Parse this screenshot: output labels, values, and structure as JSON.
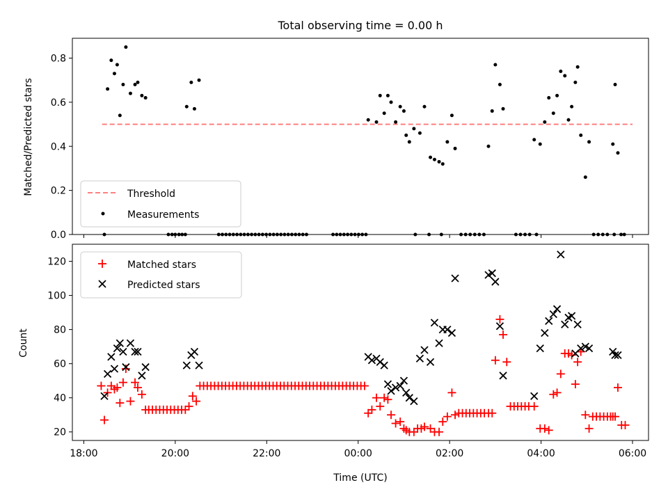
{
  "chart_data": [
    {
      "type": "scatter",
      "title": "Total observing time = 0.00 h",
      "xlabel": "",
      "ylabel": "Matched/Predicted stars",
      "xlim": [
        "18:00",
        "06:00"
      ],
      "ylim": [
        0,
        0.89
      ],
      "yticks": [
        "0.0",
        "0.2",
        "0.4",
        "0.6",
        "0.8"
      ],
      "legend_position": "lower-left",
      "threshold": {
        "name": "Threshold",
        "value": 0.5,
        "x_range": [
          18.4,
          30.0
        ],
        "color": "#ff7f7f"
      },
      "series": [
        {
          "name": "Measurements",
          "color": "#000000",
          "x": [
            18.45,
            18.52,
            18.6,
            18.67,
            18.73,
            18.79,
            18.86,
            18.92,
            19.02,
            19.12,
            19.18,
            19.27,
            19.35,
            20.25,
            20.35,
            20.42,
            20.52,
            24.22,
            24.4,
            24.48,
            24.57,
            24.65,
            24.72,
            24.82,
            24.92,
            25.0,
            25.05,
            25.12,
            25.22,
            25.35,
            25.45,
            25.58,
            25.67,
            25.77,
            25.85,
            25.95,
            26.05,
            26.12,
            26.85,
            26.93,
            27.0,
            27.1,
            27.17,
            27.85,
            27.98,
            28.08,
            28.17,
            28.27,
            28.35,
            28.43,
            28.52,
            28.6,
            28.67,
            28.75,
            28.8,
            28.87,
            28.97,
            29.05,
            29.57,
            29.62,
            29.68
          ],
          "y": [
            0.0,
            0.66,
            0.79,
            0.73,
            0.77,
            0.54,
            0.68,
            0.85,
            0.64,
            0.68,
            0.69,
            0.63,
            0.62,
            0.58,
            0.69,
            0.57,
            0.7,
            0.52,
            0.51,
            0.63,
            0.55,
            0.63,
            0.6,
            0.51,
            0.58,
            0.56,
            0.45,
            0.42,
            0.48,
            0.46,
            0.58,
            0.35,
            0.34,
            0.33,
            0.32,
            0.42,
            0.54,
            0.39,
            0.4,
            0.56,
            0.77,
            0.68,
            0.57,
            0.43,
            0.41,
            0.51,
            0.62,
            0.55,
            0.63,
            0.74,
            0.72,
            0.52,
            0.58,
            0.69,
            0.76,
            0.45,
            0.26,
            0.42,
            0.41,
            0.68,
            0.37
          ]
        },
        {
          "name": "",
          "color": "#000000",
          "x": [
            19.85,
            19.93,
            20.0,
            20.08,
            20.15,
            20.22,
            20.95,
            21.03,
            21.11,
            21.19,
            21.27,
            21.35,
            21.43,
            21.51,
            21.59,
            21.67,
            21.75,
            21.83,
            21.91,
            21.99,
            22.07,
            22.15,
            22.23,
            22.31,
            22.39,
            22.47,
            22.55,
            22.63,
            22.71,
            22.79,
            22.87,
            23.45,
            23.53,
            23.61,
            23.69,
            23.77,
            23.85,
            23.93,
            24.01,
            24.09,
            24.17,
            25.25,
            25.55,
            25.82,
            26.25,
            26.35,
            26.45,
            26.55,
            26.65,
            26.75,
            27.45,
            27.55,
            27.65,
            27.75,
            27.9,
            29.15,
            29.25,
            29.35,
            29.45,
            29.6,
            29.75,
            29.82
          ],
          "y": [
            0,
            0,
            0,
            0,
            0,
            0,
            0,
            0,
            0,
            0,
            0,
            0,
            0,
            0,
            0,
            0,
            0,
            0,
            0,
            0,
            0,
            0,
            0,
            0,
            0,
            0,
            0,
            0,
            0,
            0,
            0,
            0,
            0,
            0,
            0,
            0,
            0,
            0,
            0,
            0,
            0,
            0,
            0,
            0,
            0,
            0,
            0,
            0,
            0,
            0,
            0,
            0,
            0,
            0,
            0,
            0,
            0,
            0,
            0,
            0,
            0,
            0
          ]
        }
      ]
    },
    {
      "type": "scatter",
      "xlabel": "Time (UTC)",
      "ylabel": "Count",
      "xlim": [
        "18:00",
        "06:00"
      ],
      "ylim": [
        15,
        130
      ],
      "xticks": [
        "18:00",
        "20:00",
        "22:00",
        "00:00",
        "02:00",
        "04:00",
        "06:00"
      ],
      "yticks": [
        "20",
        "40",
        "60",
        "80",
        "100",
        "120"
      ],
      "legend_position": "upper-left",
      "series": [
        {
          "name": "Matched stars",
          "marker": "plus",
          "color": "#ff0000",
          "x": [
            18.38,
            18.45,
            18.52,
            18.6,
            18.67,
            18.73,
            18.79,
            18.86,
            18.92,
            19.02,
            19.12,
            19.18,
            19.27,
            19.35,
            19.42,
            19.5,
            19.58,
            19.66,
            19.74,
            19.82,
            19.9,
            19.98,
            20.06,
            20.14,
            20.22,
            20.3,
            20.38,
            20.46,
            20.54,
            20.62,
            20.7,
            20.78,
            20.86,
            20.94,
            21.02,
            21.1,
            21.18,
            21.26,
            21.34,
            21.42,
            21.5,
            21.58,
            21.66,
            21.74,
            21.82,
            21.9,
            21.98,
            22.06,
            22.14,
            22.22,
            22.3,
            22.38,
            22.46,
            22.54,
            22.62,
            22.7,
            22.78,
            22.86,
            22.94,
            23.02,
            23.1,
            23.18,
            23.26,
            23.34,
            23.42,
            23.5,
            23.58,
            23.66,
            23.74,
            23.82,
            23.9,
            23.98,
            24.06,
            24.14,
            24.22,
            24.3,
            24.4,
            24.48,
            24.57,
            24.65,
            24.72,
            24.82,
            24.92,
            25.0,
            25.05,
            25.12,
            25.22,
            25.3,
            25.38,
            25.45,
            25.58,
            25.67,
            25.77,
            25.85,
            25.95,
            26.05,
            26.12,
            26.2,
            26.28,
            26.36,
            26.44,
            26.52,
            26.6,
            26.68,
            26.76,
            26.85,
            26.93,
            27.0,
            27.1,
            27.17,
            27.25,
            27.33,
            27.41,
            27.49,
            27.57,
            27.65,
            27.73,
            27.85,
            27.98,
            28.08,
            28.17,
            28.27,
            28.35,
            28.43,
            28.52,
            28.6,
            28.67,
            28.75,
            28.8,
            28.87,
            28.97,
            29.05,
            29.13,
            29.21,
            29.29,
            29.37,
            29.45,
            29.52,
            29.57,
            29.62,
            29.68,
            29.76,
            29.84
          ],
          "y": [
            47,
            27,
            43,
            47,
            45,
            46,
            37,
            49,
            57,
            38,
            49,
            46,
            42,
            33,
            33,
            33,
            33,
            33,
            33,
            33,
            33,
            33,
            33,
            33,
            33,
            35,
            41,
            38,
            47,
            47,
            47,
            47,
            47,
            47,
            47,
            47,
            47,
            47,
            47,
            47,
            47,
            47,
            47,
            47,
            47,
            47,
            47,
            47,
            47,
            47,
            47,
            47,
            47,
            47,
            47,
            47,
            47,
            47,
            47,
            47,
            47,
            47,
            47,
            47,
            47,
            47,
            47,
            47,
            47,
            47,
            47,
            47,
            47,
            47,
            31,
            33,
            40,
            35,
            40,
            39,
            30,
            25,
            26,
            22,
            21,
            20,
            20,
            22,
            22,
            23,
            22,
            20,
            20,
            26,
            29,
            43,
            30,
            31,
            31,
            31,
            31,
            31,
            31,
            31,
            31,
            31,
            31,
            62,
            86,
            77,
            61,
            35,
            35,
            35,
            35,
            35,
            35,
            35,
            22,
            22,
            21,
            42,
            43,
            54,
            66,
            66,
            65,
            48,
            61,
            67,
            30,
            22,
            29,
            29,
            29,
            29,
            29,
            29,
            29,
            29,
            46,
            24,
            24
          ]
        },
        {
          "name": "Predicted stars",
          "marker": "x",
          "color": "#000000",
          "x": [
            18.45,
            18.52,
            18.6,
            18.67,
            18.73,
            18.79,
            18.86,
            18.92,
            19.02,
            19.12,
            19.18,
            19.27,
            19.35,
            20.25,
            20.35,
            20.42,
            20.52,
            24.22,
            24.3,
            24.4,
            24.48,
            24.57,
            24.65,
            24.72,
            24.82,
            24.92,
            25.0,
            25.05,
            25.12,
            25.22,
            25.35,
            25.45,
            25.58,
            25.67,
            25.77,
            25.85,
            25.95,
            26.05,
            26.12,
            26.85,
            26.93,
            27.0,
            27.1,
            27.17,
            27.85,
            27.98,
            28.08,
            28.17,
            28.27,
            28.35,
            28.43,
            28.52,
            28.6,
            28.67,
            28.75,
            28.8,
            28.87,
            28.97,
            29.05,
            29.57,
            29.62,
            29.68
          ],
          "y": [
            41,
            54,
            64,
            57,
            69,
            72,
            67,
            58,
            72,
            67,
            67,
            53,
            58,
            59,
            65,
            67,
            59,
            64,
            62,
            63,
            61,
            59,
            48,
            44,
            46,
            47,
            50,
            43,
            40,
            38,
            63,
            68,
            61,
            84,
            72,
            80,
            80,
            78,
            110,
            112,
            113,
            108,
            82,
            53,
            41,
            69,
            78,
            85,
            89,
            92,
            124,
            83,
            87,
            88,
            66,
            83,
            69,
            70,
            69,
            67,
            65,
            65
          ]
        }
      ]
    }
  ]
}
